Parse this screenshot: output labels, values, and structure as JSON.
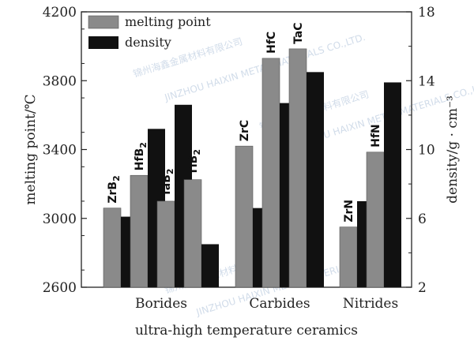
{
  "chart_data": {
    "type": "bar",
    "xlabel": "ultra-high temperature ceramics",
    "ylabel": "melting point/℃",
    "y2label": "density/g · cm⁻³",
    "ylim": [
      2600,
      4200
    ],
    "y2lim": [
      2,
      18
    ],
    "yticks": [
      "2600",
      "3000",
      "3400",
      "3800",
      "4200"
    ],
    "y2ticks": [
      "2",
      "6",
      "10",
      "14",
      "18"
    ],
    "legend_position": "top-left",
    "groups": [
      {
        "name": "Borides",
        "compounds": [
          {
            "label": "ZrB",
            "sub": "2",
            "melting": 3060,
            "density": 6.1
          },
          {
            "label": "HfB",
            "sub": "2",
            "melting": 3250,
            "density": 11.2
          },
          {
            "label": "TaB",
            "sub": "2",
            "melting": 3100,
            "density": 12.6
          },
          {
            "label": "TiB",
            "sub": "2",
            "melting": 3225,
            "density": 4.5
          }
        ]
      },
      {
        "name": "Carbides",
        "compounds": [
          {
            "label": "ZrC",
            "sub": "",
            "melting": 3420,
            "density": 6.6
          },
          {
            "label": "HfC",
            "sub": "",
            "melting": 3930,
            "density": 12.7
          },
          {
            "label": "TaC",
            "sub": "",
            "melting": 3985,
            "density": 14.5
          }
        ]
      },
      {
        "name": "Nitrides",
        "compounds": [
          {
            "label": "ZrN",
            "sub": "",
            "melting": 2950,
            "density": 7.0
          },
          {
            "label": "HfN",
            "sub": "",
            "melting": 3385,
            "density": 13.9
          }
        ]
      }
    ],
    "series": [
      {
        "name": "melting point",
        "color": "#8a8a8a",
        "axis": "left"
      },
      {
        "name": "density",
        "color": "#111111",
        "axis": "right"
      }
    ]
  },
  "watermarks": [
    "锦州海鑫金属材料有限公司",
    "JINZHOU HAIXIN METAL MATERIALS CO.,LTD."
  ]
}
